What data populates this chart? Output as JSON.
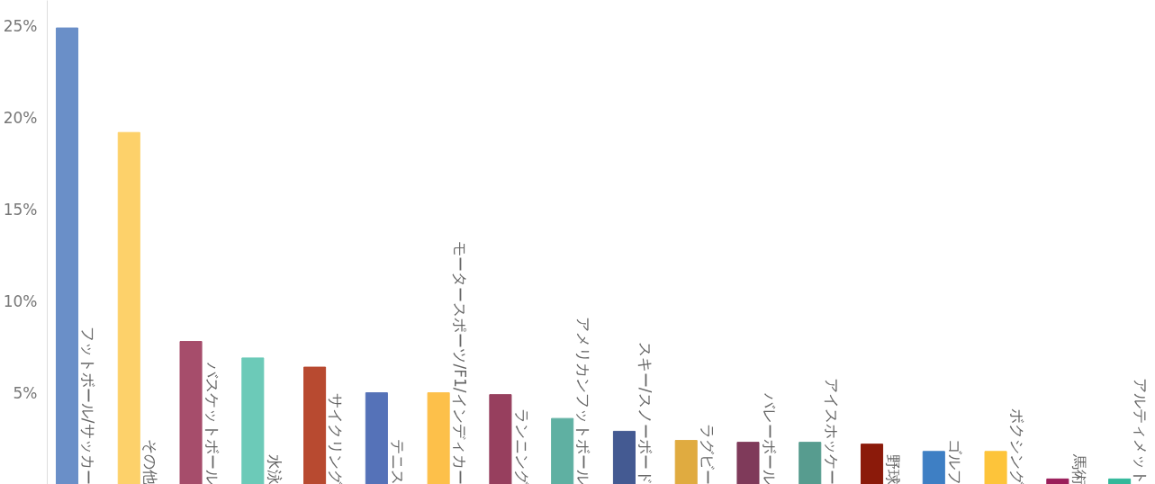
{
  "chart_data": {
    "type": "bar",
    "categories": [
      "フットボール/サッカー",
      "その他",
      "バスケットボール",
      "水泳",
      "サイクリング",
      "テニス",
      "モータースポーツ/F1/インディカー",
      "ランニング",
      "アメリカンフットボール",
      "スキー/スノーボード",
      "ラグビー",
      "バレーボール",
      "アイスホッケー",
      "野球",
      "ゴルフ",
      "ボクシング",
      "馬術",
      "アルティメット"
    ],
    "values": [
      24.9,
      19.2,
      7.8,
      6.9,
      6.4,
      5.0,
      5.0,
      4.9,
      3.6,
      2.9,
      2.4,
      2.3,
      2.3,
      2.2,
      1.8,
      1.8,
      0.3,
      0.3
    ],
    "colors": [
      "#6a8fc8",
      "#fdd16a",
      "#a64d6b",
      "#6ccab8",
      "#b84a30",
      "#5572b8",
      "#fdc04a",
      "#973f5e",
      "#5fb0a2",
      "#445a92",
      "#e0ab40",
      "#7f3a5a",
      "#579c8f",
      "#8b1a0a",
      "#3e7fc4",
      "#fdc43a",
      "#9a1e5a",
      "#33b89a"
    ],
    "ylim": [
      0,
      26.4
    ],
    "yticks": [
      {
        "value": 5,
        "label": "5%"
      },
      {
        "value": 10,
        "label": "10%"
      },
      {
        "value": 15,
        "label": "15%"
      },
      {
        "value": 20,
        "label": "20%"
      },
      {
        "value": 25,
        "label": "25%"
      }
    ],
    "grid": false
  }
}
